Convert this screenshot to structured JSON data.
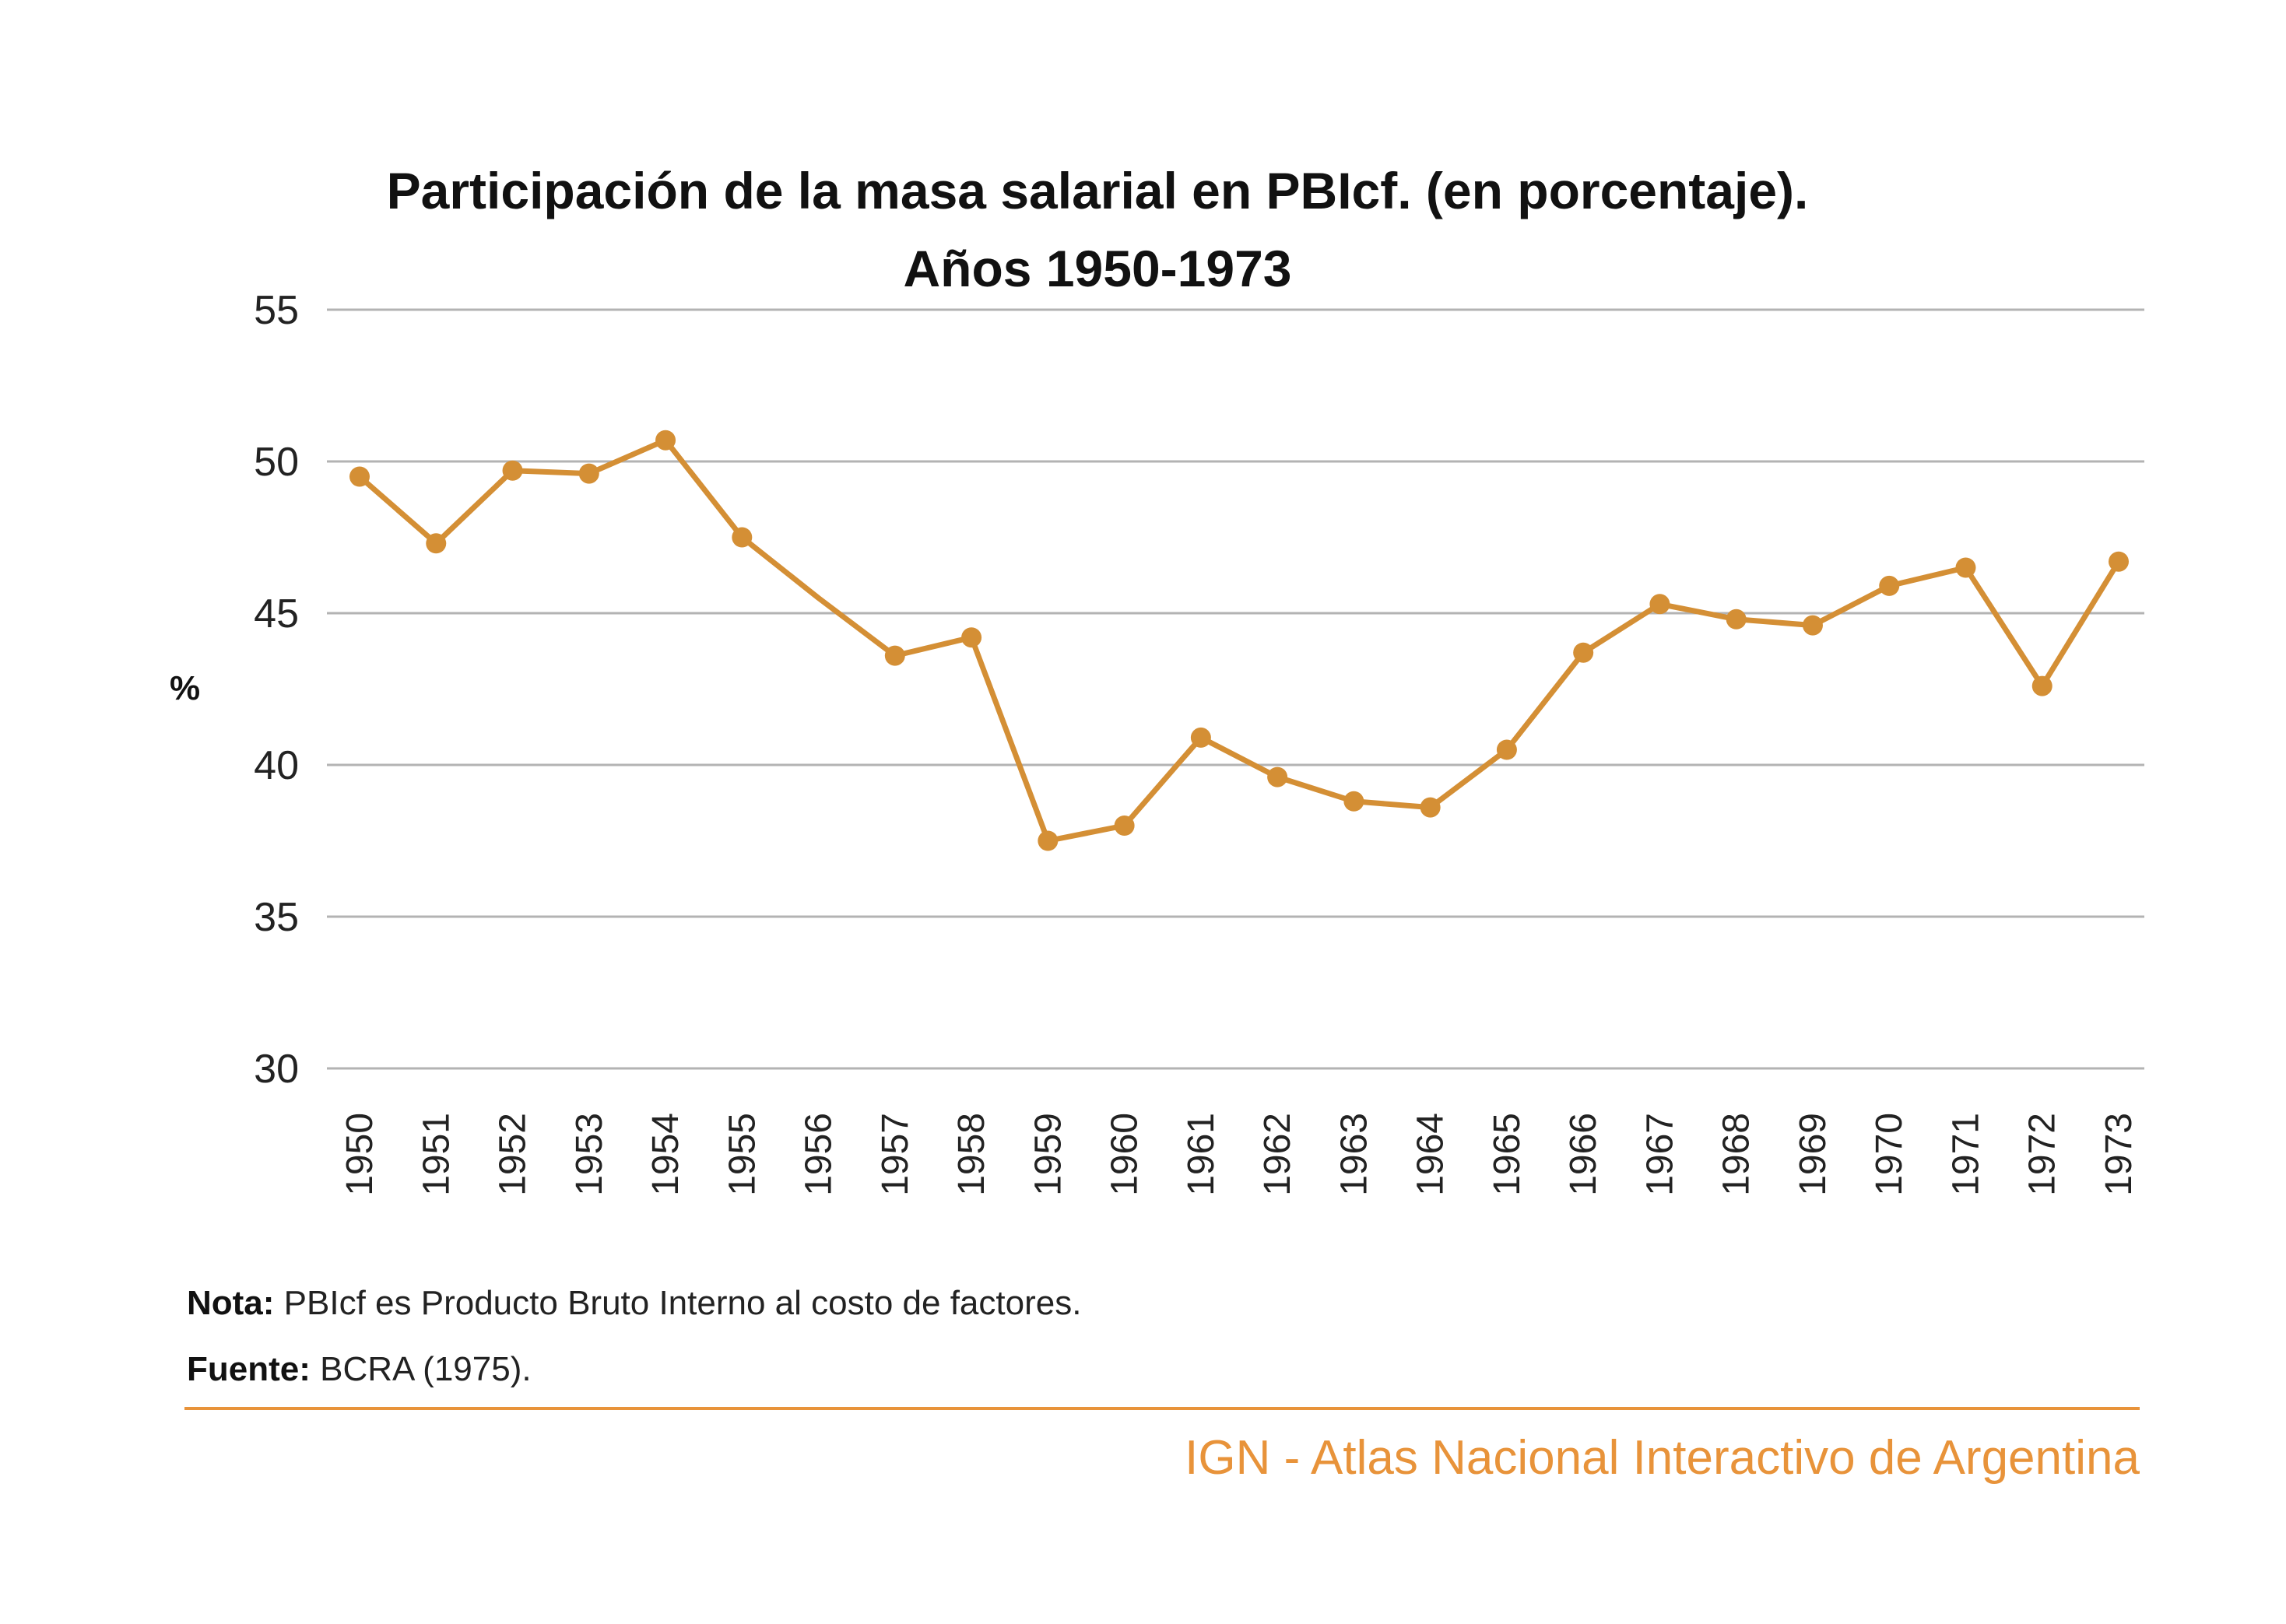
{
  "title_line1": "Participación de la masa salarial en PBIcf. (en porcentaje).",
  "title_line2": "Años 1950-1973",
  "note_label": "Nota:",
  "note_text": "PBIcf es Producto Bruto Interno al costo de factores.",
  "source_label": "Fuente:",
  "source_text": "BCRA (1975).",
  "brand": "IGN - Atlas Nacional Interactivo de Argentina",
  "colors": {
    "line": "#d48f35",
    "grid": "#b3b3b3",
    "accent": "#e8933a"
  },
  "chart_data": {
    "type": "line",
    "title": "Participación de la masa salarial en PBIcf. (en porcentaje). Años 1950-1973",
    "xlabel": "",
    "ylabel": "%",
    "ylim": [
      30,
      55
    ],
    "yticks": [
      30,
      35,
      40,
      45,
      50,
      55
    ],
    "grid": true,
    "categories": [
      "1950",
      "1951",
      "1952",
      "1953",
      "1954",
      "1955",
      "1956",
      "1957",
      "1958",
      "1959",
      "1960",
      "1961",
      "1962",
      "1963",
      "1964",
      "1965",
      "1966",
      "1967",
      "1968",
      "1969",
      "1970",
      "1971",
      "1972",
      "1973"
    ],
    "series": [
      {
        "values": [
          49.5,
          47.3,
          49.7,
          49.6,
          50.7,
          47.5,
          45.5,
          43.6,
          44.2,
          37.5,
          38.0,
          40.9,
          39.6,
          38.8,
          38.6,
          40.5,
          43.7,
          45.3,
          44.8,
          44.6,
          45.9,
          46.5,
          42.6,
          46.7
        ],
        "markers": [
          true,
          true,
          true,
          true,
          true,
          true,
          false,
          true,
          true,
          true,
          true,
          true,
          true,
          true,
          true,
          true,
          true,
          true,
          true,
          true,
          true,
          true,
          true,
          true
        ]
      }
    ]
  }
}
